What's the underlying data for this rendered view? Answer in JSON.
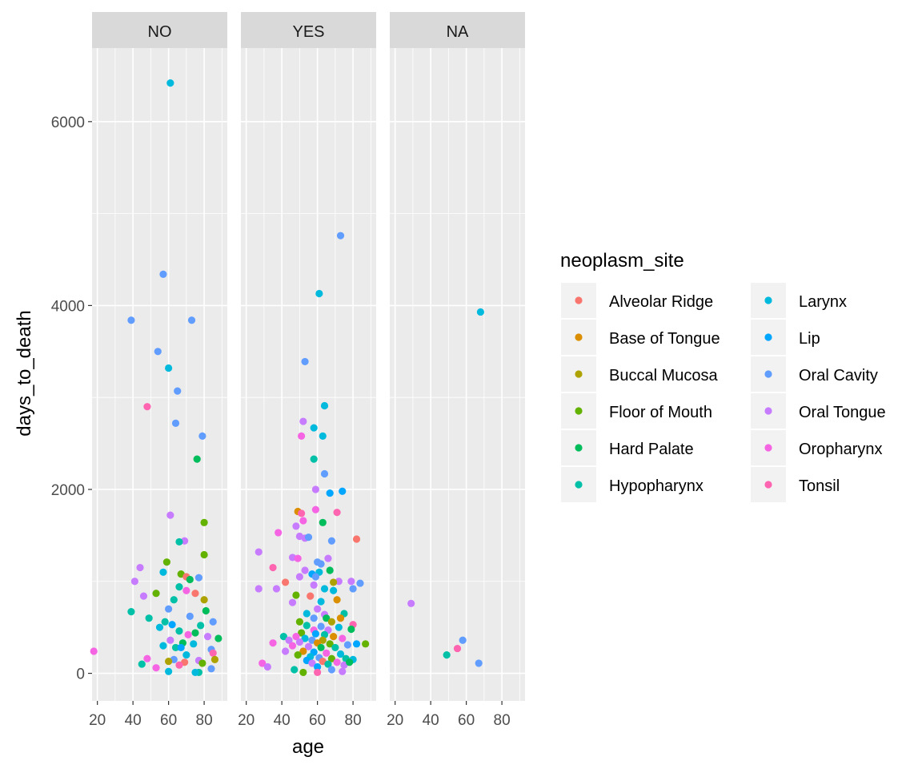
{
  "chart_data": {
    "type": "scatter",
    "xlabel": "age",
    "ylabel": "days_to_death",
    "xlim": [
      17,
      93
    ],
    "ylim": [
      -300,
      6800
    ],
    "x_ticks": [
      20,
      40,
      60,
      80
    ],
    "y_ticks": [
      0,
      2000,
      4000,
      6000
    ],
    "x_tick_labels": [
      "20",
      "40",
      "60",
      "80"
    ],
    "y_tick_labels": [
      "0",
      "2000",
      "4000",
      "6000"
    ],
    "grid": true,
    "legend": {
      "title": "neoplasm_site",
      "position": "right",
      "entries": [
        {
          "name": "Alveolar Ridge",
          "color": "#F8766D"
        },
        {
          "name": "Base of Tongue",
          "color": "#DB8E00"
        },
        {
          "name": "Buccal Mucosa",
          "color": "#AEA200"
        },
        {
          "name": "Floor of Mouth",
          "color": "#64B200"
        },
        {
          "name": "Hard Palate",
          "color": "#00BD5C"
        },
        {
          "name": "Hypopharynx",
          "color": "#00C1A7"
        },
        {
          "name": "Larynx",
          "color": "#00BADE"
        },
        {
          "name": "Lip",
          "color": "#00A6FF"
        },
        {
          "name": "Oral Cavity",
          "color": "#619CFF"
        },
        {
          "name": "Oral Tongue",
          "color": "#C77CFF"
        },
        {
          "name": "Oropharynx",
          "color": "#F564E3"
        },
        {
          "name": "Tonsil",
          "color": "#FF64B0"
        }
      ]
    },
    "panels": [
      {
        "label": "NO",
        "points": [
          [
            61,
            6420,
            6
          ],
          [
            57,
            4340,
            8
          ],
          [
            39,
            3840,
            8
          ],
          [
            73,
            3840,
            8
          ],
          [
            54,
            3500,
            8
          ],
          [
            60,
            3320,
            6
          ],
          [
            65,
            3070,
            8
          ],
          [
            48,
            2900,
            11
          ],
          [
            64,
            2720,
            8
          ],
          [
            79,
            2580,
            8
          ],
          [
            76,
            2330,
            4
          ],
          [
            61,
            1720,
            9
          ],
          [
            80,
            1640,
            3
          ],
          [
            69,
            1440,
            9
          ],
          [
            66,
            1430,
            5
          ],
          [
            80,
            1290,
            3
          ],
          [
            59,
            1210,
            3
          ],
          [
            44,
            1150,
            9
          ],
          [
            57,
            1100,
            6
          ],
          [
            67,
            1080,
            3
          ],
          [
            70,
            1050,
            0
          ],
          [
            72,
            1020,
            4
          ],
          [
            77,
            1040,
            8
          ],
          [
            41,
            1000,
            9
          ],
          [
            66,
            940,
            5
          ],
          [
            70,
            900,
            10
          ],
          [
            53,
            870,
            3
          ],
          [
            46,
            840,
            9
          ],
          [
            75,
            870,
            0
          ],
          [
            63,
            800,
            5
          ],
          [
            80,
            800,
            2
          ],
          [
            39,
            670,
            5
          ],
          [
            81,
            680,
            4
          ],
          [
            60,
            700,
            8
          ],
          [
            72,
            620,
            8
          ],
          [
            49,
            600,
            5
          ],
          [
            58,
            560,
            5
          ],
          [
            62,
            530,
            7
          ],
          [
            85,
            560,
            8
          ],
          [
            78,
            520,
            5
          ],
          [
            55,
            500,
            6
          ],
          [
            66,
            460,
            5
          ],
          [
            75,
            440,
            4
          ],
          [
            71,
            420,
            10
          ],
          [
            82,
            400,
            9
          ],
          [
            88,
            380,
            4
          ],
          [
            61,
            360,
            9
          ],
          [
            68,
            330,
            4
          ],
          [
            74,
            320,
            6
          ],
          [
            57,
            300,
            6
          ],
          [
            64,
            280,
            5
          ],
          [
            67,
            280,
            7
          ],
          [
            84,
            260,
            8
          ],
          [
            18,
            240,
            10
          ],
          [
            85,
            220,
            11
          ],
          [
            70,
            200,
            6
          ],
          [
            48,
            160,
            10
          ],
          [
            63,
            150,
            8
          ],
          [
            86,
            150,
            2
          ],
          [
            77,
            140,
            9
          ],
          [
            60,
            130,
            2
          ],
          [
            69,
            120,
            0
          ],
          [
            45,
            100,
            5
          ],
          [
            79,
            110,
            3
          ],
          [
            66,
            90,
            11
          ],
          [
            53,
            60,
            10
          ],
          [
            84,
            50,
            8
          ],
          [
            60,
            20,
            6
          ],
          [
            77,
            10,
            5
          ],
          [
            75,
            10,
            6
          ]
        ]
      },
      {
        "label": "YES",
        "points": [
          [
            73,
            4760,
            8
          ],
          [
            61,
            4130,
            6
          ],
          [
            53,
            3390,
            8
          ],
          [
            64,
            2910,
            6
          ],
          [
            52,
            2740,
            9
          ],
          [
            58,
            2670,
            6
          ],
          [
            51,
            2580,
            10
          ],
          [
            63,
            2580,
            6
          ],
          [
            58,
            2330,
            5
          ],
          [
            64,
            2170,
            8
          ],
          [
            59,
            2000,
            9
          ],
          [
            74,
            1980,
            7
          ],
          [
            67,
            1960,
            7
          ],
          [
            49,
            1760,
            1
          ],
          [
            51,
            1740,
            11
          ],
          [
            59,
            1780,
            10
          ],
          [
            71,
            1750,
            11
          ],
          [
            63,
            1640,
            4
          ],
          [
            52,
            1660,
            10
          ],
          [
            38,
            1530,
            10
          ],
          [
            48,
            1600,
            9
          ],
          [
            50,
            1490,
            9
          ],
          [
            53,
            1470,
            9
          ],
          [
            55,
            1480,
            8
          ],
          [
            68,
            1440,
            8
          ],
          [
            82,
            1460,
            0
          ],
          [
            27,
            1320,
            9
          ],
          [
            46,
            1260,
            9
          ],
          [
            49,
            1250,
            10
          ],
          [
            60,
            1210,
            8
          ],
          [
            66,
            1250,
            9
          ],
          [
            62,
            1190,
            8
          ],
          [
            35,
            1150,
            11
          ],
          [
            53,
            1120,
            9
          ],
          [
            67,
            1120,
            4
          ],
          [
            61,
            1100,
            6
          ],
          [
            57,
            1080,
            7
          ],
          [
            59,
            1050,
            8
          ],
          [
            42,
            990,
            0
          ],
          [
            50,
            1050,
            9
          ],
          [
            84,
            980,
            8
          ],
          [
            72,
            1000,
            9
          ],
          [
            69,
            990,
            2
          ],
          [
            79,
            1000,
            9
          ],
          [
            58,
            960,
            9
          ],
          [
            27,
            920,
            9
          ],
          [
            37,
            920,
            9
          ],
          [
            64,
            920,
            6
          ],
          [
            69,
            900,
            6
          ],
          [
            80,
            920,
            8
          ],
          [
            48,
            850,
            3
          ],
          [
            56,
            840,
            0
          ],
          [
            71,
            800,
            1
          ],
          [
            62,
            780,
            6
          ],
          [
            46,
            770,
            9
          ],
          [
            60,
            700,
            9
          ],
          [
            75,
            650,
            5
          ],
          [
            54,
            650,
            6
          ],
          [
            64,
            640,
            9
          ],
          [
            58,
            600,
            8
          ],
          [
            65,
            600,
            4
          ],
          [
            73,
            600,
            1
          ],
          [
            50,
            560,
            3
          ],
          [
            68,
            560,
            2
          ],
          [
            80,
            530,
            11
          ],
          [
            54,
            520,
            5
          ],
          [
            62,
            510,
            8
          ],
          [
            72,
            500,
            6
          ],
          [
            79,
            480,
            4
          ],
          [
            58,
            470,
            10
          ],
          [
            66,
            470,
            9
          ],
          [
            51,
            440,
            3
          ],
          [
            59,
            430,
            7
          ],
          [
            64,
            420,
            5
          ],
          [
            69,
            400,
            1
          ],
          [
            48,
            400,
            10
          ],
          [
            41,
            400,
            5
          ],
          [
            53,
            380,
            6
          ],
          [
            57,
            360,
            8
          ],
          [
            63,
            360,
            2
          ],
          [
            74,
            380,
            10
          ],
          [
            44,
            360,
            9
          ],
          [
            50,
            340,
            9
          ],
          [
            35,
            330,
            10
          ],
          [
            60,
            330,
            1
          ],
          [
            67,
            320,
            3
          ],
          [
            77,
            310,
            8
          ],
          [
            82,
            320,
            7
          ],
          [
            87,
            320,
            3
          ],
          [
            46,
            300,
            10
          ],
          [
            55,
            290,
            9
          ],
          [
            62,
            280,
            4
          ],
          [
            70,
            280,
            5
          ],
          [
            42,
            240,
            9
          ],
          [
            52,
            240,
            1
          ],
          [
            58,
            230,
            7
          ],
          [
            65,
            220,
            10
          ],
          [
            73,
            210,
            6
          ],
          [
            49,
            200,
            3
          ],
          [
            56,
            180,
            6
          ],
          [
            61,
            170,
            8
          ],
          [
            68,
            160,
            3
          ],
          [
            76,
            160,
            5
          ],
          [
            80,
            150,
            6
          ],
          [
            54,
            140,
            7
          ],
          [
            63,
            130,
            0
          ],
          [
            71,
            120,
            10
          ],
          [
            29,
            110,
            10
          ],
          [
            57,
            110,
            9
          ],
          [
            66,
            100,
            5
          ],
          [
            75,
            90,
            9
          ],
          [
            60,
            70,
            7
          ],
          [
            32,
            70,
            9
          ],
          [
            47,
            40,
            5
          ],
          [
            68,
            40,
            8
          ],
          [
            74,
            20,
            9
          ],
          [
            52,
            10,
            3
          ],
          [
            60,
            10,
            11
          ],
          [
            78,
            120,
            4
          ]
        ]
      },
      {
        "label": "NA",
        "points": [
          [
            68,
            3930,
            6
          ],
          [
            29,
            760,
            9
          ],
          [
            58,
            360,
            8
          ],
          [
            55,
            270,
            11
          ],
          [
            49,
            200,
            5
          ],
          [
            67,
            110,
            8
          ]
        ]
      }
    ]
  }
}
